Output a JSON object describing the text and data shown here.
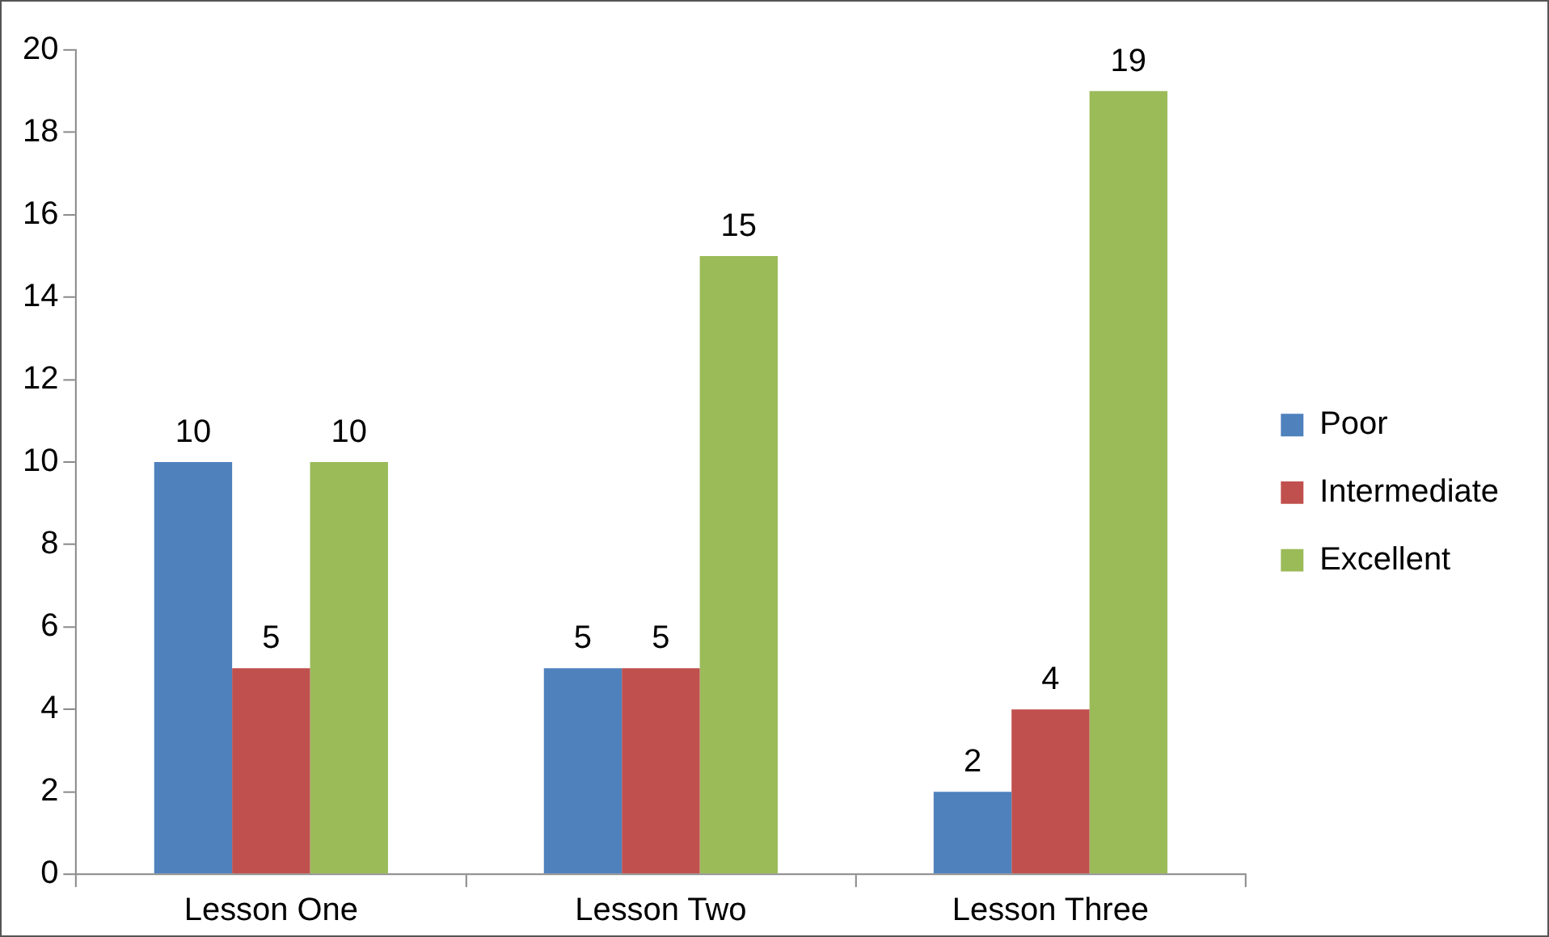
{
  "chart_data": {
    "type": "bar",
    "categories": [
      "Lesson One",
      "Lesson Two",
      "Lesson Three"
    ],
    "series": [
      {
        "name": "Poor",
        "color": "#4f81bd",
        "values": [
          10,
          5,
          2
        ]
      },
      {
        "name": "Intermediate",
        "color": "#c0504d",
        "values": [
          5,
          5,
          4
        ]
      },
      {
        "name": "Excellent",
        "color": "#9bbb59",
        "values": [
          10,
          15,
          19
        ]
      }
    ],
    "ylim": [
      0,
      20
    ],
    "yticks": [
      0,
      2,
      4,
      6,
      8,
      10,
      12,
      14,
      16,
      18,
      20
    ],
    "grid": false,
    "legend": "right",
    "data_labels": true
  }
}
